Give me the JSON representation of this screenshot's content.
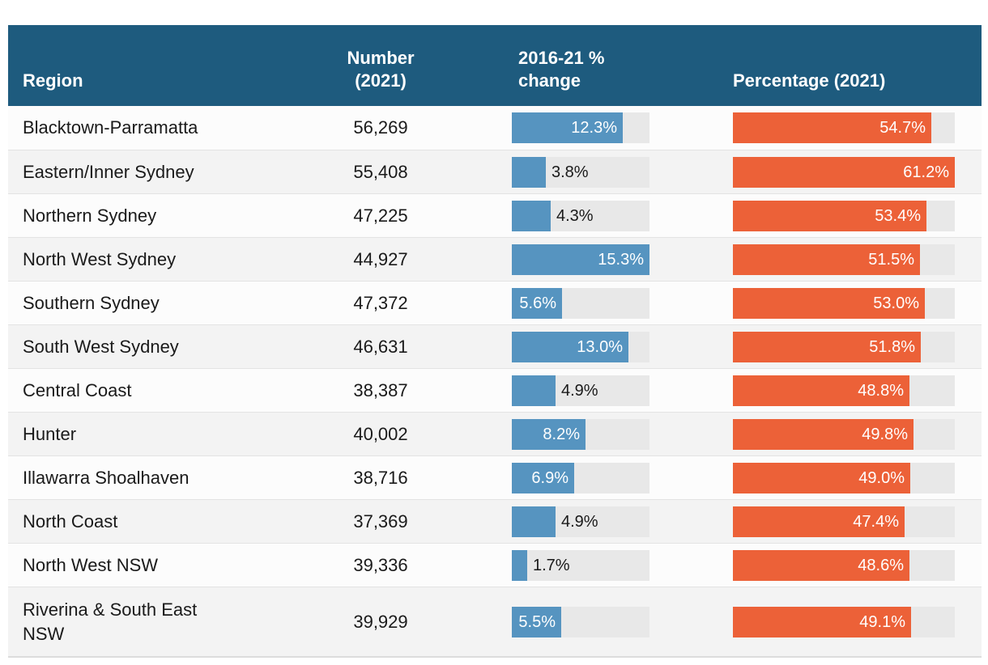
{
  "table": {
    "columns": [
      {
        "label": "Region"
      },
      {
        "label": "Number (2021)"
      },
      {
        "label": "2016-21 % change"
      },
      {
        "label": "Percentage (2021)"
      }
    ],
    "rows": [
      {
        "region": "Blacktown-Parramatta",
        "number": "56,269",
        "change_label": "12.3%",
        "change_value": 12.3,
        "pct_label": "54.7%",
        "pct_value": 54.7
      },
      {
        "region": "Eastern/Inner Sydney",
        "number": "55,408",
        "change_label": "3.8%",
        "change_value": 3.8,
        "pct_label": "61.2%",
        "pct_value": 61.2
      },
      {
        "region": "Northern Sydney",
        "number": "47,225",
        "change_label": "4.3%",
        "change_value": 4.3,
        "pct_label": "53.4%",
        "pct_value": 53.4
      },
      {
        "region": "North West Sydney",
        "number": "44,927",
        "change_label": "15.3%",
        "change_value": 15.3,
        "pct_label": "51.5%",
        "pct_value": 51.5
      },
      {
        "region": "Southern Sydney",
        "number": "47,372",
        "change_label": "5.6%",
        "change_value": 5.6,
        "pct_label": "53.0%",
        "pct_value": 53.0
      },
      {
        "region": "South West Sydney",
        "number": "46,631",
        "change_label": "13.0%",
        "change_value": 13.0,
        "pct_label": "51.8%",
        "pct_value": 51.8
      },
      {
        "region": "Central Coast",
        "number": "38,387",
        "change_label": "4.9%",
        "change_value": 4.9,
        "pct_label": "48.8%",
        "pct_value": 48.8
      },
      {
        "region": "Hunter",
        "number": "40,002",
        "change_label": "8.2%",
        "change_value": 8.2,
        "pct_label": "49.8%",
        "pct_value": 49.8
      },
      {
        "region": "Illawarra Shoalhaven",
        "number": "38,716",
        "change_label": "6.9%",
        "change_value": 6.9,
        "pct_label": "49.0%",
        "pct_value": 49.0
      },
      {
        "region": "North Coast",
        "number": "37,369",
        "change_label": "4.9%",
        "change_value": 4.9,
        "pct_label": "47.4%",
        "pct_value": 47.4
      },
      {
        "region": "North West NSW",
        "number": "39,336",
        "change_label": "1.7%",
        "change_value": 1.7,
        "pct_label": "48.6%",
        "pct_value": 48.6
      },
      {
        "region": "Riverina & South East NSW",
        "number": "39,929",
        "change_label": "5.5%",
        "change_value": 5.5,
        "pct_label": "49.1%",
        "pct_value": 49.1
      }
    ]
  },
  "colors": {
    "header_bg": "#1e5b7e",
    "change_bar": "#5694c0",
    "pct_bar": "#ec6138",
    "bar_track": "#e8e8e8"
  },
  "chart_data": {
    "type": "table",
    "title": "",
    "columns": [
      "Region",
      "Number (2021)",
      "2016-21 % change",
      "Percentage (2021)"
    ],
    "categories": [
      "Blacktown-Parramatta",
      "Eastern/Inner Sydney",
      "Northern Sydney",
      "North West Sydney",
      "Southern Sydney",
      "South West Sydney",
      "Central Coast",
      "Hunter",
      "Illawarra Shoalhaven",
      "North Coast",
      "North West NSW",
      "Riverina & South East NSW"
    ],
    "series": [
      {
        "name": "Number (2021)",
        "values": [
          56269,
          55408,
          47225,
          44927,
          47372,
          46631,
          38387,
          40002,
          38716,
          37369,
          39336,
          39929
        ]
      },
      {
        "name": "2016-21 % change",
        "values": [
          12.3,
          3.8,
          4.3,
          15.3,
          5.6,
          13.0,
          4.9,
          8.2,
          6.9,
          4.9,
          1.7,
          5.5
        ],
        "axis_max": 15.3,
        "bar_color": "#5694c0"
      },
      {
        "name": "Percentage (2021)",
        "values": [
          54.7,
          61.2,
          53.4,
          51.5,
          53.0,
          51.8,
          48.8,
          49.8,
          49.0,
          47.4,
          48.6,
          49.1
        ],
        "axis_max": 61.2,
        "bar_color": "#ec6138"
      }
    ],
    "legend": "none",
    "grid": false
  }
}
